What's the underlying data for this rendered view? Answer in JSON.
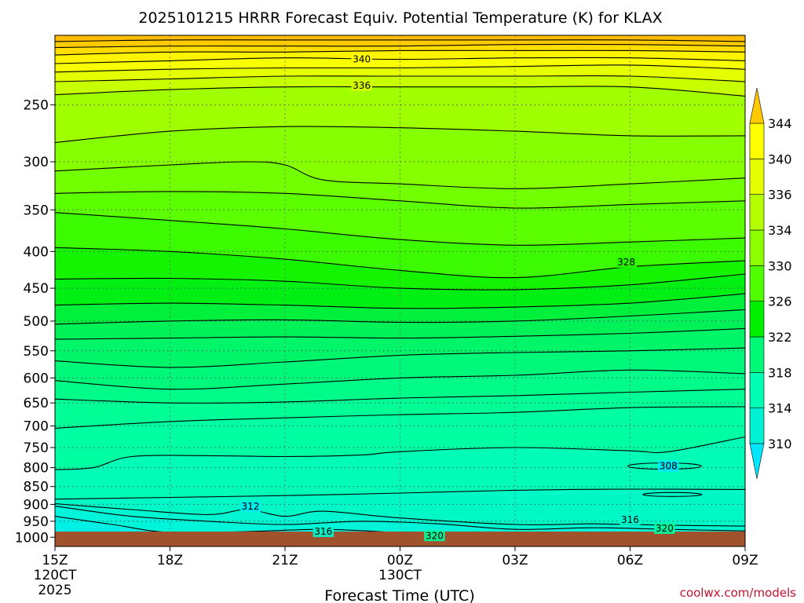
{
  "chart_data": {
    "type": "heatmap",
    "title": "2025101215 HRRR Forecast Equiv. Potential Temperature (K) for KLAX",
    "xlabel": "Forecast Time (UTC)",
    "ylabel": "",
    "credit": "coolwx.com/models",
    "x_ticks": [
      {
        "hour": 0,
        "label": "15Z",
        "sub": [
          "120CT",
          "2025"
        ]
      },
      {
        "hour": 3,
        "label": "18Z",
        "sub": []
      },
      {
        "hour": 6,
        "label": "21Z",
        "sub": []
      },
      {
        "hour": 9,
        "label": "00Z",
        "sub": [
          "130CT"
        ]
      },
      {
        "hour": 12,
        "label": "03Z",
        "sub": []
      },
      {
        "hour": 15,
        "label": "06Z",
        "sub": []
      },
      {
        "hour": 18,
        "label": "09Z",
        "sub": []
      }
    ],
    "xlim": [
      0,
      18
    ],
    "y_ticks": [
      250,
      300,
      350,
      400,
      450,
      500,
      550,
      600,
      650,
      700,
      750,
      800,
      850,
      900,
      950,
      1000
    ],
    "ylim": [
      1030,
      200
    ],
    "y_scale": "log-pressure",
    "grid": true,
    "colorbar": {
      "ticks": [
        310,
        314,
        318,
        322,
        326,
        330,
        334,
        336,
        340,
        344
      ],
      "colors": [
        "#00e6ff",
        "#00f2d2",
        "#00ffb4",
        "#00fa78",
        "#00f000",
        "#50ff00",
        "#8cff00",
        "#b4ff00",
        "#e6ff00",
        "#ffff00",
        "#ffc800"
      ]
    },
    "contour_labels": [
      {
        "value": "340",
        "hour": 8.0,
        "pressure": 216
      },
      {
        "value": "336",
        "hour": 8.0,
        "pressure": 235
      },
      {
        "value": "328",
        "hour": 14.9,
        "pressure": 414
      },
      {
        "value": "312",
        "hour": 5.1,
        "pressure": 906
      },
      {
        "value": "316",
        "hour": 7.0,
        "pressure": 982
      },
      {
        "value": "320",
        "hour": 9.9,
        "pressure": 995
      },
      {
        "value": "308",
        "hour": 16.0,
        "pressure": 796
      },
      {
        "value": "316",
        "hour": 15.0,
        "pressure": 945
      },
      {
        "value": "320",
        "hour": 15.9,
        "pressure": 972
      }
    ],
    "series": [
      {
        "level": 346,
        "points": [
          [
            0,
            204
          ],
          [
            3,
            203
          ],
          [
            6,
            203
          ],
          [
            9,
            203
          ],
          [
            12,
            203
          ],
          [
            15,
            203
          ],
          [
            18,
            204
          ]
        ]
      },
      {
        "level": 344,
        "points": [
          [
            0,
            208
          ],
          [
            3,
            207
          ],
          [
            6,
            207
          ],
          [
            9,
            207
          ],
          [
            12,
            206
          ],
          [
            15,
            206
          ],
          [
            18,
            207
          ]
        ]
      },
      {
        "level": 342,
        "points": [
          [
            0,
            213
          ],
          [
            3,
            211
          ],
          [
            6,
            211
          ],
          [
            9,
            210
          ],
          [
            12,
            210
          ],
          [
            15,
            210
          ],
          [
            18,
            211
          ]
        ]
      },
      {
        "level": 340,
        "points": [
          [
            0,
            219
          ],
          [
            3,
            217
          ],
          [
            6,
            215
          ],
          [
            9,
            216
          ],
          [
            12,
            215
          ],
          [
            15,
            215
          ],
          [
            18,
            217
          ]
        ]
      },
      {
        "level": 338,
        "points": [
          [
            0,
            225
          ],
          [
            3,
            223
          ],
          [
            6,
            222
          ],
          [
            9,
            222
          ],
          [
            12,
            221
          ],
          [
            15,
            220
          ],
          [
            18,
            223
          ]
        ]
      },
      {
        "level": 336,
        "points": [
          [
            0,
            232
          ],
          [
            3,
            230
          ],
          [
            6,
            228
          ],
          [
            9,
            228
          ],
          [
            12,
            228
          ],
          [
            15,
            228
          ],
          [
            18,
            232
          ]
        ]
      },
      {
        "level": 334,
        "points": [
          [
            0,
            242
          ],
          [
            3,
            238
          ],
          [
            6,
            236
          ],
          [
            9,
            236
          ],
          [
            12,
            236
          ],
          [
            15,
            236
          ],
          [
            18,
            243
          ]
        ]
      },
      {
        "level": 332,
        "points": [
          [
            0,
            282
          ],
          [
            3,
            272
          ],
          [
            6,
            268
          ],
          [
            9,
            269
          ],
          [
            12,
            272
          ],
          [
            15,
            276
          ],
          [
            18,
            276
          ]
        ]
      },
      {
        "level": 331,
        "points": [
          [
            0,
            309
          ],
          [
            3,
            303
          ],
          [
            5,
            300
          ],
          [
            6,
            303
          ],
          [
            7,
            318
          ],
          [
            9,
            322
          ],
          [
            12,
            327
          ],
          [
            15,
            322
          ],
          [
            18,
            316
          ]
        ]
      },
      {
        "level": 330,
        "points": [
          [
            0,
            332
          ],
          [
            3,
            330
          ],
          [
            6,
            332
          ],
          [
            9,
            340
          ],
          [
            12,
            348
          ],
          [
            15,
            344
          ],
          [
            18,
            340
          ]
        ]
      },
      {
        "level": 329,
        "points": [
          [
            0,
            353
          ],
          [
            3,
            362
          ],
          [
            6,
            372
          ],
          [
            9,
            385
          ],
          [
            12,
            392
          ],
          [
            15,
            388
          ],
          [
            18,
            383
          ]
        ]
      },
      {
        "level": 328,
        "points": [
          [
            0,
            395
          ],
          [
            3,
            400
          ],
          [
            6,
            410
          ],
          [
            9,
            425
          ],
          [
            12,
            435
          ],
          [
            15,
            420
          ],
          [
            18,
            412
          ]
        ]
      },
      {
        "level": 327,
        "points": [
          [
            0,
            437
          ],
          [
            3,
            436
          ],
          [
            6,
            440
          ],
          [
            9,
            450
          ],
          [
            12,
            452
          ],
          [
            15,
            445
          ],
          [
            18,
            430
          ]
        ]
      },
      {
        "level": 326,
        "points": [
          [
            0,
            475
          ],
          [
            3,
            472
          ],
          [
            6,
            475
          ],
          [
            9,
            480
          ],
          [
            12,
            478
          ],
          [
            15,
            472
          ],
          [
            18,
            458
          ]
        ]
      },
      {
        "level": 325,
        "points": [
          [
            0,
            505
          ],
          [
            3,
            500
          ],
          [
            6,
            498
          ],
          [
            9,
            502
          ],
          [
            12,
            500
          ],
          [
            15,
            492
          ],
          [
            18,
            482
          ]
        ]
      },
      {
        "level": 324,
        "points": [
          [
            0,
            530
          ],
          [
            3,
            528
          ],
          [
            6,
            526
          ],
          [
            9,
            528
          ],
          [
            12,
            525
          ],
          [
            15,
            520
          ],
          [
            18,
            512
          ]
        ]
      },
      {
        "level": 323,
        "points": [
          [
            0,
            568
          ],
          [
            3,
            580
          ],
          [
            6,
            570
          ],
          [
            9,
            558
          ],
          [
            12,
            553
          ],
          [
            15,
            550
          ],
          [
            18,
            545
          ]
        ]
      },
      {
        "level": 322,
        "points": [
          [
            0,
            605
          ],
          [
            3,
            622
          ],
          [
            6,
            612
          ],
          [
            9,
            600
          ],
          [
            12,
            595
          ],
          [
            15,
            585
          ],
          [
            18,
            592
          ]
        ]
      },
      {
        "level": 321,
        "points": [
          [
            0,
            642
          ],
          [
            3,
            650
          ],
          [
            6,
            648
          ],
          [
            9,
            640
          ],
          [
            12,
            635
          ],
          [
            15,
            628
          ],
          [
            18,
            622
          ]
        ]
      },
      {
        "level": 320,
        "points": [
          [
            0,
            705
          ],
          [
            3,
            690
          ],
          [
            6,
            682
          ],
          [
            9,
            675
          ],
          [
            12,
            670
          ],
          [
            15,
            660
          ],
          [
            18,
            658
          ]
        ]
      },
      {
        "level": 319,
        "points": [
          [
            0,
            805
          ],
          [
            1,
            800
          ],
          [
            2,
            772
          ],
          [
            4,
            770
          ],
          [
            6,
            772
          ],
          [
            8,
            768
          ],
          [
            9,
            760
          ],
          [
            12,
            750
          ],
          [
            15,
            758
          ],
          [
            16,
            760
          ],
          [
            18,
            725
          ]
        ]
      },
      {
        "level": 317,
        "points": [
          [
            0,
            885
          ],
          [
            3,
            880
          ],
          [
            6,
            875
          ],
          [
            9,
            868
          ],
          [
            12,
            860
          ],
          [
            15,
            857
          ],
          [
            18,
            858
          ]
        ]
      },
      {
        "level": 316,
        "points": [
          [
            0,
            898
          ],
          [
            2,
            915
          ],
          [
            4,
            930
          ],
          [
            5,
            915
          ],
          [
            6,
            935
          ],
          [
            7,
            920
          ],
          [
            9,
            940
          ],
          [
            12,
            960
          ],
          [
            14,
            958
          ],
          [
            16,
            962
          ],
          [
            18,
            965
          ]
        ]
      },
      {
        "level": 315,
        "points": [
          [
            0,
            905
          ],
          [
            2,
            935
          ],
          [
            4,
            950
          ],
          [
            6,
            960
          ],
          [
            8,
            950
          ],
          [
            10,
            958
          ],
          [
            12,
            975
          ],
          [
            14,
            970
          ],
          [
            16,
            975
          ],
          [
            18,
            980
          ]
        ]
      },
      {
        "level": 314,
        "points": [
          [
            0,
            935
          ],
          [
            1.5,
            960
          ],
          [
            3,
            985
          ],
          [
            5,
            982
          ],
          [
            7,
            975
          ],
          [
            9,
            985
          ],
          [
            11,
            992
          ],
          [
            13,
            988
          ],
          [
            15,
            990
          ],
          [
            18,
            993
          ]
        ]
      }
    ]
  }
}
